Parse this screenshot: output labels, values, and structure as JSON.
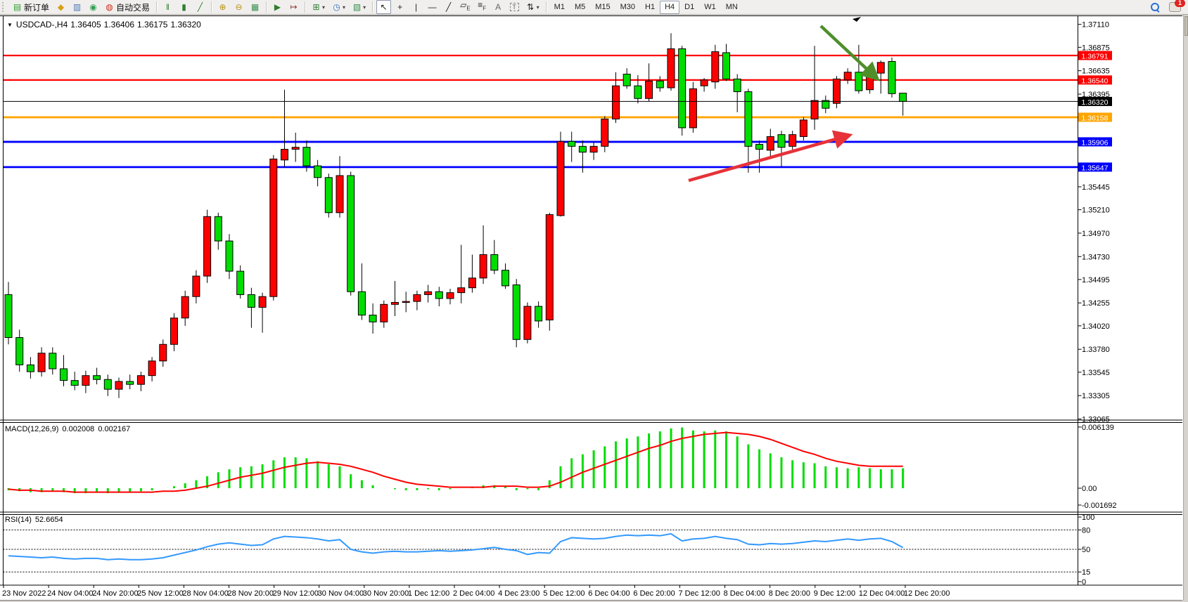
{
  "toolbar": {
    "new_order_label": "新订单",
    "autotrading_label": "自动交易",
    "groups": [
      {
        "buttons": [
          {
            "name": "new-order-button",
            "icon": "new-order-icon",
            "glyph": "▤",
            "color": "#2e9e2e",
            "label": "新订单"
          },
          {
            "name": "chart-profile-button",
            "icon": "yellow-diamond-icon",
            "glyph": "◆",
            "color": "#d8a018"
          },
          {
            "name": "market-window-button",
            "icon": "blue-window-icon",
            "glyph": "▥",
            "color": "#4b76b8"
          },
          {
            "name": "data-connection-button",
            "icon": "green-globe-icon",
            "glyph": "◉",
            "color": "#2f9e50"
          },
          {
            "name": "autotrading-button",
            "icon": "autotrading-icon",
            "glyph": "◍",
            "color": "#d03020",
            "label": "自动交易"
          }
        ]
      },
      {
        "buttons": [
          {
            "name": "bar-chart-button",
            "icon": "bar-chart-icon",
            "glyph": "‖",
            "color": "#2f7d2f"
          },
          {
            "name": "candlestick-chart-button",
            "icon": "candlestick-icon",
            "glyph": "▮",
            "color": "#2f7d2f"
          },
          {
            "name": "line-chart-button",
            "icon": "line-chart-icon",
            "glyph": "╱",
            "color": "#2f7d2f"
          }
        ]
      },
      {
        "buttons": [
          {
            "name": "zoom-in-button",
            "icon": "zoom-in-icon",
            "glyph": "⊕",
            "color": "#b99310"
          },
          {
            "name": "zoom-out-button",
            "icon": "zoom-out-icon",
            "glyph": "⊖",
            "color": "#b99310"
          },
          {
            "name": "tile-windows-button",
            "icon": "tile-windows-icon",
            "glyph": "▦",
            "color": "#3a8f4e"
          }
        ]
      },
      {
        "buttons": [
          {
            "name": "auto-scroll-button",
            "icon": "auto-scroll-icon",
            "glyph": "▶",
            "color": "#2f7d2f"
          },
          {
            "name": "chart-shift-button",
            "icon": "chart-shift-icon",
            "glyph": "↦",
            "color": "#8a3030"
          }
        ]
      },
      {
        "buttons": [
          {
            "name": "new-chart-button",
            "icon": "new-chart-icon",
            "glyph": "⊞",
            "color": "#2f7d2f",
            "dropdown": true
          },
          {
            "name": "period-button",
            "icon": "clock-icon",
            "glyph": "◷",
            "color": "#3a6fb8",
            "dropdown": true
          },
          {
            "name": "template-button",
            "icon": "template-icon",
            "glyph": "▧",
            "color": "#3a8f4e",
            "dropdown": true
          }
        ]
      },
      {
        "buttons": [
          {
            "name": "cursor-button",
            "icon": "cursor-icon",
            "glyph": "↖",
            "color": "#222",
            "active": true
          },
          {
            "name": "crosshair-button",
            "icon": "crosshair-icon",
            "glyph": "+",
            "color": "#222"
          },
          {
            "name": "vertical-line-button",
            "icon": "vertical-line-icon",
            "glyph": "|",
            "color": "#222"
          },
          {
            "name": "horizontal-line-button",
            "icon": "horizontal-line-icon",
            "glyph": "—",
            "color": "#222"
          },
          {
            "name": "trendline-button",
            "icon": "trendline-icon",
            "glyph": "╱",
            "color": "#222"
          },
          {
            "name": "channel-button",
            "icon": "equidistant-channel-icon",
            "glyph": "▱",
            "sub": "E",
            "color": "#222"
          },
          {
            "name": "fibonacci-button",
            "icon": "fibonacci-icon",
            "glyph": "≡",
            "sub": "F",
            "color": "#222"
          },
          {
            "name": "text-button",
            "icon": "text-icon",
            "glyph": "A",
            "color": "#666"
          },
          {
            "name": "text-label-button",
            "icon": "text-label-icon",
            "glyph": "T",
            "color": "#666",
            "boxed": true
          },
          {
            "name": "arrows-tool-button",
            "icon": "arrows-tool-icon",
            "glyph": "⇅",
            "color": "#222",
            "dropdown": true
          }
        ]
      }
    ],
    "timeframes": [
      "M1",
      "M5",
      "M15",
      "M30",
      "H1",
      "H4",
      "D1",
      "W1",
      "MN"
    ],
    "active_timeframe": "H4",
    "notification_count": "1"
  },
  "chart": {
    "symbol": "USDCAD-,H4",
    "ohlc": {
      "open": "1.36405",
      "high": "1.36406",
      "low": "1.36175",
      "close": "1.36320"
    }
  },
  "chart_data": {
    "type": "candlestick",
    "symbol": "USDCAD-",
    "timeframe": "H4",
    "current_ohlc": {
      "open": "1.36405",
      "high": "1.36406",
      "low": "1.36175",
      "close": "1.36320"
    },
    "price_axis": {
      "min": 1.33065,
      "max": 1.3711,
      "ticks": [
        "1.37110",
        "1.36875",
        "1.36635",
        "1.36395",
        "1.35445",
        "1.35210",
        "1.34970",
        "1.34730",
        "1.34495",
        "1.34255",
        "1.34020",
        "1.33780",
        "1.33545",
        "1.33305",
        "1.33065"
      ]
    },
    "time_labels": [
      "23 Nov 2022",
      "24 Nov 04:00",
      "24 Nov 20:00",
      "25 Nov 12:00",
      "28 Nov 04:00",
      "28 Nov 20:00",
      "29 Nov 12:00",
      "30 Nov 04:00",
      "30 Nov 20:00",
      "1 Dec 12:00",
      "2 Dec 04:00",
      "4 Dec 23:00",
      "5 Dec 12:00",
      "6 Dec 04:00",
      "6 Dec 20:00",
      "7 Dec 12:00",
      "8 Dec 04:00",
      "8 Dec 20:00",
      "9 Dec 12:00",
      "12 Dec 04:00",
      "12 Dec 20:00"
    ],
    "price_lines": [
      {
        "price": "1.36791",
        "color": "#ff0000",
        "width": 2.2,
        "role": "resistance"
      },
      {
        "price": "1.36540",
        "color": "#ff0000",
        "width": 2.2,
        "role": "resistance"
      },
      {
        "price": "1.36320",
        "color": "#000000",
        "width": 1,
        "role": "bid"
      },
      {
        "price": "1.36158",
        "color": "#ffa500",
        "width": 2.8,
        "role": "pivot"
      },
      {
        "price": "1.35906",
        "color": "#0000ff",
        "width": 2.8,
        "role": "support"
      },
      {
        "price": "1.35647",
        "color": "#0000ff",
        "width": 2.8,
        "role": "support"
      }
    ],
    "candles": [
      [
        1.3434,
        1.3447,
        1.3383,
        1.339
      ],
      [
        1.339,
        1.3398,
        1.3355,
        1.3362
      ],
      [
        1.3362,
        1.337,
        1.3348,
        1.3355
      ],
      [
        1.3355,
        1.338,
        1.335,
        1.3374
      ],
      [
        1.3374,
        1.338,
        1.3352,
        1.3358
      ],
      [
        1.3358,
        1.3372,
        1.334,
        1.3346
      ],
      [
        1.3346,
        1.3355,
        1.3336,
        1.3341
      ],
      [
        1.3341,
        1.3356,
        1.3333,
        1.3351
      ],
      [
        1.3351,
        1.3359,
        1.3342,
        1.3347
      ],
      [
        1.3347,
        1.3352,
        1.333,
        1.3337
      ],
      [
        1.3337,
        1.3349,
        1.3328,
        1.3345
      ],
      [
        1.3345,
        1.3352,
        1.3337,
        1.3342
      ],
      [
        1.3342,
        1.3355,
        1.3335,
        1.3351
      ],
      [
        1.3351,
        1.337,
        1.3345,
        1.3366
      ],
      [
        1.3366,
        1.3388,
        1.336,
        1.3383
      ],
      [
        1.3383,
        1.3415,
        1.3376,
        1.341
      ],
      [
        1.341,
        1.3438,
        1.3402,
        1.3432
      ],
      [
        1.3432,
        1.3459,
        1.3425,
        1.3453
      ],
      [
        1.3453,
        1.3521,
        1.3446,
        1.3514
      ],
      [
        1.3514,
        1.3518,
        1.348,
        1.3489
      ],
      [
        1.3489,
        1.3496,
        1.345,
        1.3458
      ],
      [
        1.3458,
        1.3464,
        1.343,
        1.3434
      ],
      [
        1.3434,
        1.3441,
        1.34,
        1.3421
      ],
      [
        1.3421,
        1.3436,
        1.3395,
        1.3432
      ],
      [
        1.3432,
        1.3577,
        1.3428,
        1.3573
      ],
      [
        1.3572,
        1.3644,
        1.3565,
        1.3583
      ],
      [
        1.3583,
        1.36,
        1.357,
        1.3585
      ],
      [
        1.3585,
        1.3592,
        1.356,
        1.3566
      ],
      [
        1.3566,
        1.3572,
        1.3545,
        1.3554
      ],
      [
        1.3554,
        1.3558,
        1.3513,
        1.3518
      ],
      [
        1.3518,
        1.3576,
        1.3513,
        1.3556
      ],
      [
        1.3556,
        1.356,
        1.3433,
        1.3437
      ],
      [
        1.3437,
        1.3466,
        1.3408,
        1.3413
      ],
      [
        1.3413,
        1.3425,
        1.3394,
        1.3406
      ],
      [
        1.3406,
        1.3428,
        1.34,
        1.3424
      ],
      [
        1.3424,
        1.3448,
        1.3412,
        1.3426
      ],
      [
        1.3426,
        1.3437,
        1.3416,
        1.3427
      ],
      [
        1.3427,
        1.3438,
        1.3418,
        1.3434
      ],
      [
        1.3434,
        1.3444,
        1.3426,
        1.3437
      ],
      [
        1.3437,
        1.3442,
        1.3422,
        1.343
      ],
      [
        1.343,
        1.344,
        1.3424,
        1.3436
      ],
      [
        1.3436,
        1.3485,
        1.3425,
        1.3441
      ],
      [
        1.3441,
        1.3475,
        1.3436,
        1.3451
      ],
      [
        1.3451,
        1.3505,
        1.3445,
        1.3475
      ],
      [
        1.3475,
        1.349,
        1.3455,
        1.3459
      ],
      [
        1.3459,
        1.3466,
        1.344,
        1.3443
      ],
      [
        1.3444,
        1.345,
        1.338,
        1.3388
      ],
      [
        1.3388,
        1.3426,
        1.3384,
        1.3422
      ],
      [
        1.3422,
        1.3427,
        1.34,
        1.3407
      ],
      [
        1.3408,
        1.3518,
        1.3397,
        1.3516
      ],
      [
        1.3515,
        1.3601,
        1.3514,
        1.3591
      ],
      [
        1.3591,
        1.3601,
        1.357,
        1.3586
      ],
      [
        1.3586,
        1.3592,
        1.3559,
        1.358
      ],
      [
        1.358,
        1.359,
        1.3572,
        1.3586
      ],
      [
        1.3586,
        1.3617,
        1.358,
        1.3614
      ],
      [
        1.3614,
        1.3662,
        1.361,
        1.3648
      ],
      [
        1.366,
        1.3666,
        1.3645,
        1.3648
      ],
      [
        1.3648,
        1.3659,
        1.363,
        1.3635
      ],
      [
        1.3635,
        1.3671,
        1.3632,
        1.3653
      ],
      [
        1.3653,
        1.3658,
        1.3642,
        1.3646
      ],
      [
        1.3646,
        1.3702,
        1.3643,
        1.3686
      ],
      [
        1.3686,
        1.3689,
        1.3597,
        1.3605
      ],
      [
        1.3605,
        1.3652,
        1.36,
        1.3645
      ],
      [
        1.3648,
        1.3656,
        1.3642,
        1.3654
      ],
      [
        1.3652,
        1.369,
        1.3645,
        1.3683
      ],
      [
        1.3682,
        1.3691,
        1.3653,
        1.3655
      ],
      [
        1.3655,
        1.366,
        1.3621,
        1.3642
      ],
      [
        1.3642,
        1.3645,
        1.3559,
        1.3586
      ],
      [
        1.3588,
        1.3592,
        1.3559,
        1.3583
      ],
      [
        1.3582,
        1.3604,
        1.3575,
        1.3596
      ],
      [
        1.3598,
        1.3602,
        1.3565,
        1.3585
      ],
      [
        1.3586,
        1.3602,
        1.3582,
        1.3598
      ],
      [
        1.3596,
        1.3616,
        1.3592,
        1.3613
      ],
      [
        1.3614,
        1.3689,
        1.3603,
        1.3633
      ],
      [
        1.3633,
        1.3638,
        1.362,
        1.3625
      ],
      [
        1.363,
        1.3658,
        1.3625,
        1.3655
      ],
      [
        1.3654,
        1.3666,
        1.365,
        1.3662
      ],
      [
        1.3662,
        1.369,
        1.364,
        1.3643
      ],
      [
        1.3644,
        1.3664,
        1.364,
        1.3661
      ],
      [
        1.3661,
        1.3674,
        1.364,
        1.3672
      ],
      [
        1.3673,
        1.3677,
        1.3636,
        1.364
      ],
      [
        1.36405,
        1.36406,
        1.36175,
        1.3632
      ]
    ],
    "macd": {
      "label": "MACD(12,26,9)",
      "value": "0.002008",
      "signal_value": "0.002167",
      "axis_labels": [
        "0.006139",
        "0.00",
        "-0.001692"
      ],
      "histogram": [
        -0.0002,
        -0.0003,
        -0.0004,
        -0.0004,
        -0.0003,
        -0.0004,
        -0.0005,
        -0.0005,
        -0.0004,
        -0.0005,
        -0.0004,
        -0.0004,
        -0.0003,
        -0.0002,
        0.0,
        0.0002,
        0.0005,
        0.0008,
        0.0012,
        0.0016,
        0.0019,
        0.0021,
        0.0022,
        0.0024,
        0.0028,
        0.0031,
        0.0031,
        0.003,
        0.0027,
        0.0024,
        0.0022,
        0.0014,
        0.0008,
        0.0003,
        0.0,
        -0.0001,
        -0.0002,
        -0.0002,
        -0.0001,
        -0.0002,
        -0.0001,
        0.0,
        0.0001,
        0.0003,
        0.0003,
        0.0002,
        -0.0002,
        -0.0001,
        -0.0002,
        0.0008,
        0.0022,
        0.003,
        0.0034,
        0.0038,
        0.0042,
        0.0047,
        0.005,
        0.0052,
        0.0055,
        0.0057,
        0.006,
        0.0061,
        0.0058,
        0.0057,
        0.0058,
        0.0057,
        0.0052,
        0.0044,
        0.0039,
        0.0035,
        0.0031,
        0.0028,
        0.0026,
        0.0025,
        0.0022,
        0.0021,
        0.002,
        0.0021,
        0.002,
        0.0019,
        0.0019,
        0.002
      ],
      "signal": [
        -0.0001,
        -0.0002,
        -0.0002,
        -0.0003,
        -0.0003,
        -0.0003,
        -0.0004,
        -0.0004,
        -0.0004,
        -0.0004,
        -0.0004,
        -0.0004,
        -0.0004,
        -0.0004,
        -0.0003,
        -0.0003,
        -0.0002,
        0.0,
        0.0002,
        0.0005,
        0.0008,
        0.0011,
        0.0013,
        0.0015,
        0.0018,
        0.0021,
        0.0023,
        0.0025,
        0.0026,
        0.0025,
        0.0024,
        0.0022,
        0.0019,
        0.0016,
        0.0012,
        0.0009,
        0.0006,
        0.0004,
        0.0003,
        0.0002,
        0.0001,
        0.0001,
        0.0001,
        0.0001,
        0.0002,
        0.0002,
        0.0002,
        0.0001,
        0.0001,
        0.0002,
        0.0006,
        0.0011,
        0.0016,
        0.002,
        0.0024,
        0.0028,
        0.0032,
        0.0036,
        0.004,
        0.0043,
        0.0047,
        0.005,
        0.0052,
        0.0054,
        0.0055,
        0.0056,
        0.0055,
        0.0054,
        0.0052,
        0.0049,
        0.0045,
        0.0041,
        0.0037,
        0.0034,
        0.003,
        0.0027,
        0.0025,
        0.0023,
        0.0022,
        0.0022,
        0.0022,
        0.0022
      ]
    },
    "rsi": {
      "label": "RSI(14)",
      "value": "52.6654",
      "axis_labels": [
        "100",
        "80",
        "50",
        "15",
        "0"
      ],
      "levels": [
        80,
        50,
        15
      ],
      "series": [
        40,
        39,
        38,
        37,
        38,
        36,
        35,
        36,
        36,
        34,
        35,
        34,
        34,
        35,
        37,
        41,
        45,
        49,
        54,
        58,
        60,
        58,
        56,
        57,
        66,
        70,
        69,
        68,
        66,
        63,
        65,
        50,
        46,
        44,
        46,
        47,
        46,
        46,
        47,
        48,
        47,
        48,
        49,
        51,
        53,
        50,
        48,
        42,
        45,
        44,
        62,
        68,
        67,
        66,
        67,
        70,
        72,
        71,
        72,
        71,
        74,
        63,
        66,
        67,
        70,
        67,
        65,
        58,
        57,
        59,
        58,
        59,
        61,
        63,
        62,
        64,
        66,
        64,
        66,
        67,
        62,
        52.67
      ]
    },
    "arrows": [
      {
        "name": "down-trend-arrow",
        "color": "#4e8f2a",
        "from": [
          1167,
          37
        ],
        "to": [
          1246,
          111
        ]
      },
      {
        "name": "up-trend-arrow",
        "color": "#e63238",
        "from": [
          979,
          257
        ],
        "to": [
          1206,
          193
        ]
      }
    ],
    "colors": {
      "bull": "#ff0000",
      "bear": "#00dd00",
      "wick": "#000000",
      "macd_histogram": "#00dd00",
      "macd_signal": "#ff0000",
      "rsi_line": "#3399ff",
      "background": "#ffffff"
    }
  }
}
